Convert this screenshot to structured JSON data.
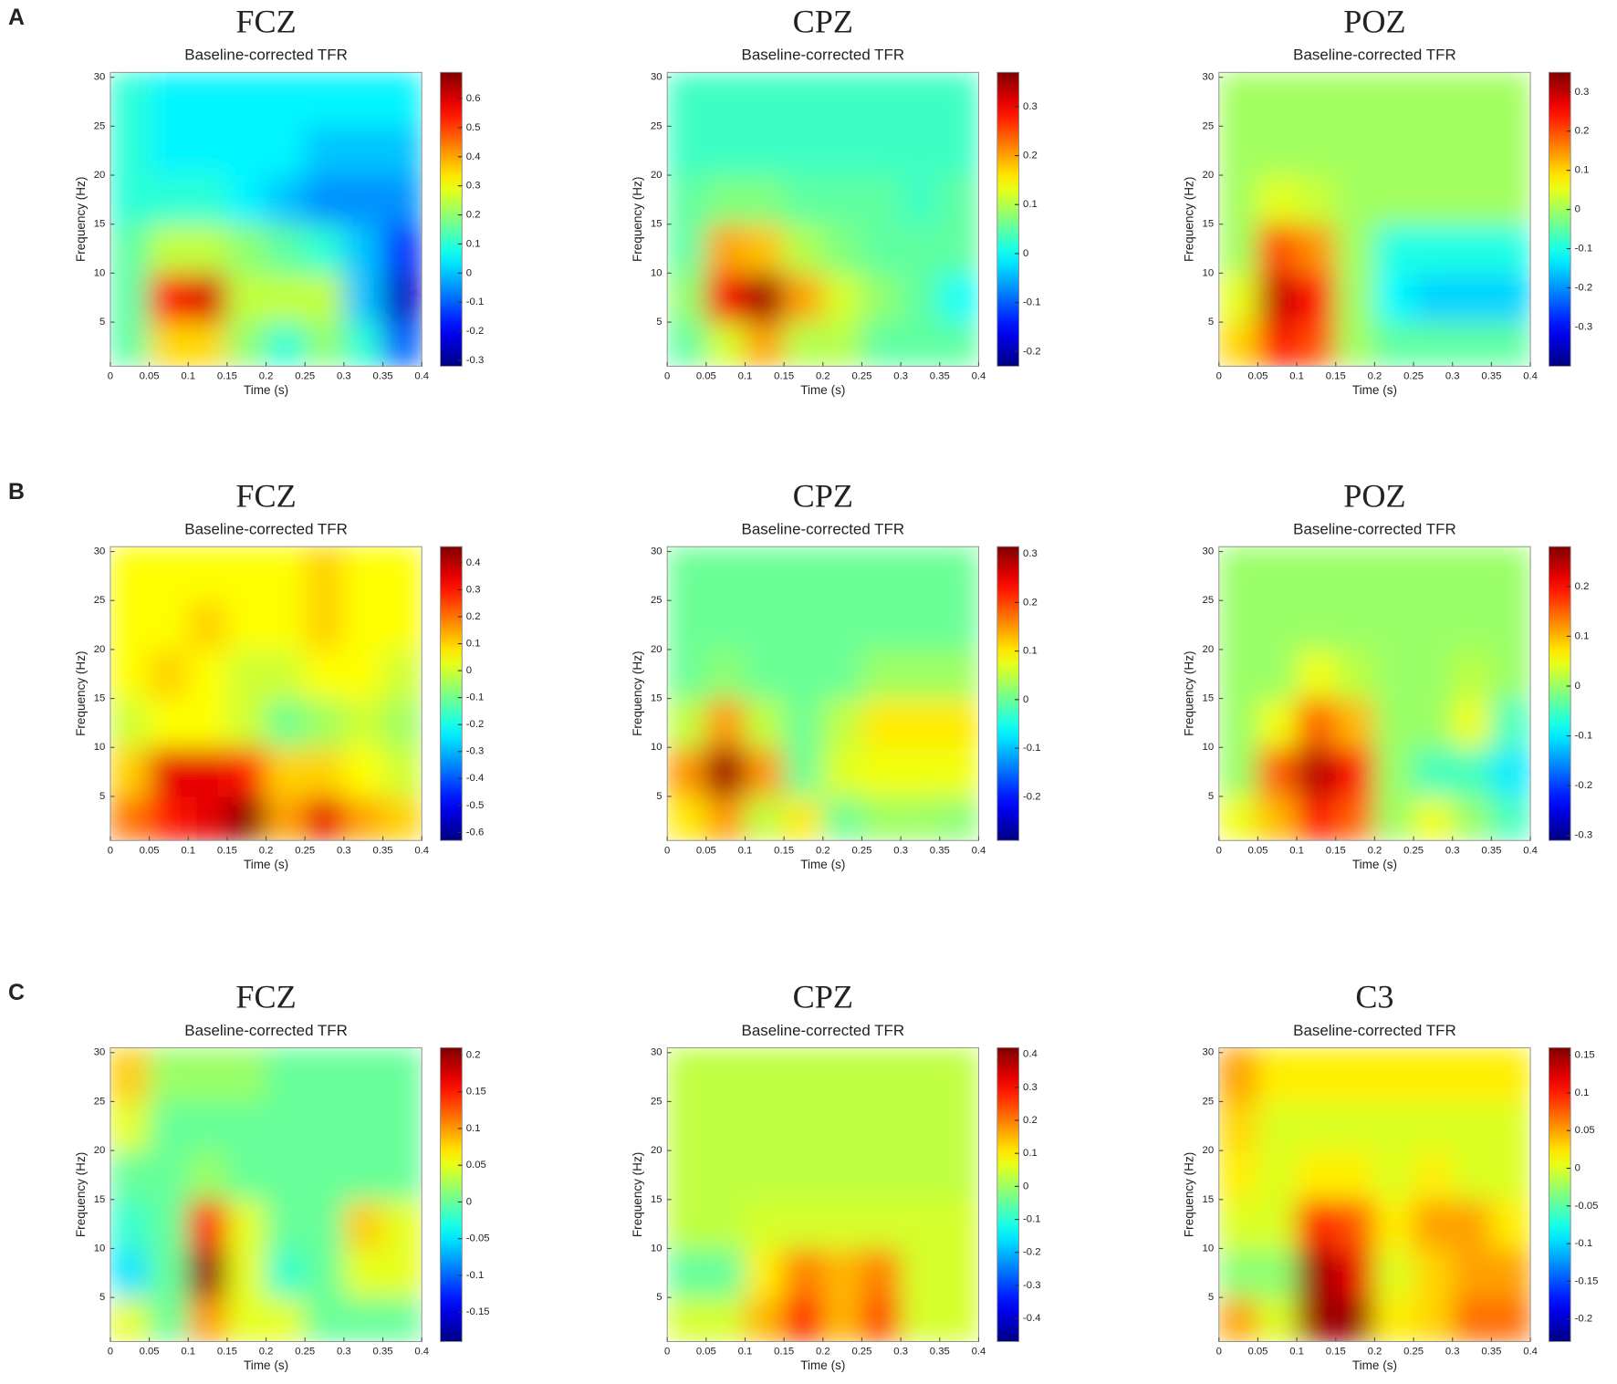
{
  "panel_labels": [
    "A",
    "B",
    "C"
  ],
  "chart_data": [
    {
      "type": "heatmap",
      "title": "FCZ",
      "subtitle": "Baseline-corrected TFR",
      "x_label": "Time (s)",
      "y_label": "Frequency (Hz)",
      "colormap": "jet",
      "x": [
        0.025,
        0.075,
        0.125,
        0.175,
        0.225,
        0.275,
        0.325,
        0.375
      ],
      "y": [
        2.5,
        7.5,
        12.5,
        17.5,
        22.5,
        27.5
      ],
      "z": [
        [
          0.15,
          0.35,
          0.35,
          0.2,
          0.1,
          0.2,
          0.1,
          -0.1
        ],
        [
          0.15,
          0.55,
          0.6,
          0.25,
          0.25,
          0.25,
          0.0,
          -0.25
        ],
        [
          0.15,
          0.25,
          0.25,
          0.2,
          0.15,
          0.1,
          0.0,
          -0.15
        ],
        [
          0.1,
          0.1,
          0.1,
          0.05,
          0.0,
          -0.05,
          -0.05,
          -0.05
        ],
        [
          0.1,
          0.05,
          0.05,
          0.05,
          0.05,
          0.0,
          0.0,
          0.0
        ],
        [
          0.1,
          0.05,
          0.05,
          0.05,
          0.05,
          0.05,
          0.05,
          0.05
        ]
      ],
      "xlim": [
        0,
        0.4
      ],
      "ylim": [
        0.5,
        30.5
      ],
      "xticks": [
        0,
        0.05,
        0.1,
        0.15,
        0.2,
        0.25,
        0.3,
        0.35,
        0.4
      ],
      "yticks": [
        5,
        10,
        15,
        20,
        25,
        30
      ],
      "clim": [
        -0.32,
        0.69
      ],
      "cticks": [
        0.6,
        0.5,
        0.4,
        0.3,
        0.2,
        0.1,
        0,
        -0.1,
        -0.2,
        -0.3
      ]
    },
    {
      "type": "heatmap",
      "title": "CPZ",
      "subtitle": "Baseline-corrected TFR",
      "x_label": "Time (s)",
      "y_label": "Frequency (Hz)",
      "colormap": "jet",
      "x": [
        0.025,
        0.075,
        0.125,
        0.175,
        0.225,
        0.275,
        0.325,
        0.375
      ],
      "y": [
        2.5,
        7.5,
        12.5,
        17.5,
        22.5,
        27.5
      ],
      "z": [
        [
          0.05,
          0.12,
          0.2,
          0.1,
          0.1,
          0.05,
          0.05,
          0.05
        ],
        [
          0.08,
          0.3,
          0.35,
          0.2,
          0.12,
          0.08,
          0.05,
          0.0
        ],
        [
          0.05,
          0.2,
          0.18,
          0.1,
          0.07,
          0.05,
          0.05,
          0.05
        ],
        [
          0.05,
          0.07,
          0.07,
          0.05,
          0.05,
          0.05,
          0.03,
          0.05
        ],
        [
          0.03,
          0.03,
          0.03,
          0.03,
          0.03,
          0.03,
          0.03,
          0.03
        ],
        [
          0.03,
          0.03,
          0.03,
          0.03,
          0.03,
          0.03,
          0.03,
          0.03
        ]
      ],
      "xlim": [
        0,
        0.4
      ],
      "ylim": [
        0.5,
        30.5
      ],
      "xticks": [
        0,
        0.05,
        0.1,
        0.15,
        0.2,
        0.25,
        0.3,
        0.35,
        0.4
      ],
      "yticks": [
        5,
        10,
        15,
        20,
        25,
        30
      ],
      "clim": [
        -0.23,
        0.37
      ],
      "cticks": [
        0.3,
        0.2,
        0.1,
        0,
        -0.1,
        -0.2
      ]
    },
    {
      "type": "heatmap",
      "title": "POZ",
      "subtitle": "Baseline-corrected TFR",
      "x_label": "Time (s)",
      "y_label": "Frequency (Hz)",
      "colormap": "jet",
      "x": [
        0.025,
        0.075,
        0.125,
        0.175,
        0.225,
        0.275,
        0.325,
        0.375
      ],
      "y": [
        2.5,
        7.5,
        12.5,
        17.5,
        22.5,
        27.5
      ],
      "z": [
        [
          0.1,
          0.25,
          0.2,
          0.0,
          -0.05,
          -0.05,
          -0.05,
          -0.05
        ],
        [
          0.05,
          0.3,
          0.25,
          0.0,
          -0.12,
          -0.15,
          -0.15,
          -0.15
        ],
        [
          0.0,
          0.2,
          0.15,
          0.0,
          -0.1,
          -0.1,
          -0.1,
          -0.1
        ],
        [
          0.0,
          0.05,
          0.03,
          0.0,
          0.0,
          0.0,
          0.0,
          0.0
        ],
        [
          0.0,
          0.0,
          0.0,
          0.0,
          0.0,
          0.0,
          0.0,
          0.0
        ],
        [
          0.0,
          0.0,
          0.0,
          0.0,
          0.0,
          0.0,
          0.0,
          0.0
        ]
      ],
      "xlim": [
        0,
        0.4
      ],
      "ylim": [
        0.5,
        30.5
      ],
      "xticks": [
        0,
        0.05,
        0.1,
        0.15,
        0.2,
        0.25,
        0.3,
        0.35,
        0.4
      ],
      "yticks": [
        5,
        10,
        15,
        20,
        25,
        30
      ],
      "clim": [
        -0.4,
        0.35
      ],
      "cticks": [
        0.3,
        0.2,
        0.1,
        0,
        -0.1,
        -0.2,
        -0.3
      ]
    },
    {
      "type": "heatmap",
      "title": "FCZ",
      "subtitle": "Baseline-corrected TFR",
      "x_label": "Time (s)",
      "y_label": "Frequency (Hz)",
      "colormap": "jet",
      "x": [
        0.025,
        0.075,
        0.125,
        0.175,
        0.225,
        0.275,
        0.325,
        0.375
      ],
      "y": [
        2.5,
        7.5,
        12.5,
        17.5,
        22.5,
        27.5
      ],
      "z": [
        [
          0.2,
          0.3,
          0.35,
          0.45,
          0.15,
          0.35,
          0.15,
          0.1
        ],
        [
          0.1,
          0.35,
          0.35,
          0.3,
          0.1,
          0.1,
          0.05,
          0.0
        ],
        [
          0.0,
          0.05,
          0.05,
          0.0,
          -0.1,
          -0.05,
          0.0,
          -0.05
        ],
        [
          0.05,
          0.1,
          0.05,
          0.0,
          0.0,
          0.05,
          0.05,
          0.0
        ],
        [
          0.05,
          0.05,
          0.1,
          0.05,
          0.05,
          0.1,
          0.05,
          0.05
        ],
        [
          0.05,
          0.05,
          0.05,
          0.05,
          0.05,
          0.1,
          0.05,
          0.05
        ]
      ],
      "xlim": [
        0,
        0.4
      ],
      "ylim": [
        0.5,
        30.5
      ],
      "xticks": [
        0,
        0.05,
        0.1,
        0.15,
        0.2,
        0.25,
        0.3,
        0.35,
        0.4
      ],
      "yticks": [
        5,
        10,
        15,
        20,
        25,
        30
      ],
      "clim": [
        -0.63,
        0.46
      ],
      "cticks": [
        0.4,
        0.3,
        0.2,
        0.1,
        0,
        -0.1,
        -0.2,
        -0.3,
        -0.4,
        -0.5,
        -0.6
      ]
    },
    {
      "type": "heatmap",
      "title": "CPZ",
      "subtitle": "Baseline-corrected TFR",
      "x_label": "Time (s)",
      "y_label": "Frequency (Hz)",
      "colormap": "jet",
      "x": [
        0.025,
        0.075,
        0.125,
        0.175,
        0.225,
        0.275,
        0.325,
        0.375
      ],
      "y": [
        2.5,
        7.5,
        12.5,
        17.5,
        22.5,
        27.5
      ],
      "z": [
        [
          0.1,
          0.15,
          0.05,
          0.1,
          0.0,
          0.03,
          0.03,
          0.02
        ],
        [
          0.15,
          0.3,
          0.15,
          0.0,
          0.07,
          0.08,
          0.08,
          0.08
        ],
        [
          0.05,
          0.15,
          0.05,
          0.0,
          0.05,
          0.1,
          0.1,
          0.1
        ],
        [
          0.0,
          0.02,
          0.0,
          0.0,
          0.0,
          0.03,
          0.03,
          0.03
        ],
        [
          0.0,
          0.0,
          0.0,
          0.0,
          0.0,
          0.0,
          0.0,
          0.0
        ],
        [
          0.0,
          0.0,
          0.0,
          0.0,
          0.0,
          0.0,
          0.0,
          0.0
        ]
      ],
      "xlim": [
        0,
        0.4
      ],
      "ylim": [
        0.5,
        30.5
      ],
      "xticks": [
        0,
        0.05,
        0.1,
        0.15,
        0.2,
        0.25,
        0.3,
        0.35,
        0.4
      ],
      "yticks": [
        5,
        10,
        15,
        20,
        25,
        30
      ],
      "clim": [
        -0.29,
        0.315
      ],
      "cticks": [
        0.3,
        0.2,
        0.1,
        0,
        -0.1,
        -0.2
      ]
    },
    {
      "type": "heatmap",
      "title": "POZ",
      "subtitle": "Baseline-corrected TFR",
      "x_label": "Time (s)",
      "y_label": "Frequency (Hz)",
      "colormap": "jet",
      "x": [
        0.025,
        0.075,
        0.125,
        0.175,
        0.225,
        0.275,
        0.325,
        0.375
      ],
      "y": [
        2.5,
        7.5,
        12.5,
        17.5,
        22.5,
        27.5
      ],
      "z": [
        [
          0.05,
          0.1,
          0.2,
          0.15,
          0.0,
          0.05,
          0.0,
          -0.05
        ],
        [
          0.0,
          0.15,
          0.25,
          0.2,
          0.0,
          -0.05,
          -0.05,
          -0.1
        ],
        [
          0.0,
          0.05,
          0.15,
          0.1,
          0.0,
          0.0,
          0.05,
          -0.05
        ],
        [
          0.0,
          0.0,
          0.05,
          0.02,
          0.0,
          0.0,
          0.02,
          0.0
        ],
        [
          0.0,
          0.0,
          0.0,
          0.0,
          0.0,
          0.0,
          0.0,
          0.0
        ],
        [
          0.0,
          0.0,
          0.0,
          0.0,
          0.0,
          0.0,
          0.0,
          0.0
        ]
      ],
      "xlim": [
        0,
        0.4
      ],
      "ylim": [
        0.5,
        30.5
      ],
      "xticks": [
        0,
        0.05,
        0.1,
        0.15,
        0.2,
        0.25,
        0.3,
        0.35,
        0.4
      ],
      "yticks": [
        5,
        10,
        15,
        20,
        25,
        30
      ],
      "clim": [
        -0.31,
        0.28
      ],
      "cticks": [
        0.2,
        0.1,
        0,
        -0.1,
        -0.2,
        -0.3
      ]
    },
    {
      "type": "heatmap",
      "title": "FCZ",
      "subtitle": "Baseline-corrected TFR",
      "x_label": "Time (s)",
      "y_label": "Frequency (Hz)",
      "colormap": "jet",
      "x": [
        0.025,
        0.075,
        0.125,
        0.175,
        0.225,
        0.275,
        0.325,
        0.375
      ],
      "y": [
        2.5,
        7.5,
        12.5,
        17.5,
        22.5,
        27.5
      ],
      "z": [
        [
          0.05,
          0.0,
          0.1,
          0.05,
          0.05,
          0.0,
          0.0,
          0.0
        ],
        [
          -0.05,
          0.0,
          0.2,
          0.05,
          -0.02,
          0.0,
          0.05,
          0.05
        ],
        [
          -0.02,
          0.0,
          0.15,
          0.05,
          0.0,
          0.0,
          0.08,
          0.05
        ],
        [
          0.0,
          0.0,
          0.02,
          0.0,
          0.0,
          0.0,
          0.0,
          0.0
        ],
        [
          0.05,
          0.0,
          0.0,
          0.0,
          0.0,
          0.0,
          0.0,
          0.0
        ],
        [
          0.08,
          0.02,
          0.02,
          0.02,
          0.0,
          0.0,
          0.0,
          0.0
        ]
      ],
      "xlim": [
        0,
        0.4
      ],
      "ylim": [
        0.5,
        30.5
      ],
      "xticks": [
        0,
        0.05,
        0.1,
        0.15,
        0.2,
        0.25,
        0.3,
        0.35,
        0.4
      ],
      "yticks": [
        5,
        10,
        15,
        20,
        25,
        30
      ],
      "clim": [
        -0.19,
        0.21
      ],
      "cticks": [
        0.2,
        0.15,
        0.1,
        0.05,
        0,
        -0.05,
        -0.1,
        -0.15
      ]
    },
    {
      "type": "heatmap",
      "title": "CPZ",
      "subtitle": "Baseline-corrected TFR",
      "x_label": "Time (s)",
      "y_label": "Frequency (Hz)",
      "colormap": "jet",
      "x": [
        0.025,
        0.075,
        0.125,
        0.175,
        0.225,
        0.275,
        0.325,
        0.375
      ],
      "y": [
        2.5,
        7.5,
        12.5,
        17.5,
        22.5,
        27.5
      ],
      "z": [
        [
          0.05,
          0.05,
          0.15,
          0.3,
          0.15,
          0.25,
          0.05,
          0.05
        ],
        [
          -0.05,
          -0.05,
          0.1,
          0.2,
          0.15,
          0.2,
          0.05,
          0.05
        ],
        [
          0.03,
          0.03,
          0.05,
          0.05,
          0.05,
          0.05,
          0.05,
          0.05
        ],
        [
          0.03,
          0.03,
          0.03,
          0.03,
          0.03,
          0.03,
          0.03,
          0.03
        ],
        [
          0.03,
          0.03,
          0.03,
          0.03,
          0.03,
          0.03,
          0.03,
          0.03
        ],
        [
          0.03,
          0.03,
          0.03,
          0.03,
          0.03,
          0.03,
          0.03,
          0.03
        ]
      ],
      "xlim": [
        0,
        0.4
      ],
      "ylim": [
        0.5,
        30.5
      ],
      "xticks": [
        0,
        0.05,
        0.1,
        0.15,
        0.2,
        0.25,
        0.3,
        0.35,
        0.4
      ],
      "yticks": [
        5,
        10,
        15,
        20,
        25,
        30
      ],
      "clim": [
        -0.47,
        0.42
      ],
      "cticks": [
        0.4,
        0.3,
        0.2,
        0.1,
        0,
        -0.1,
        -0.2,
        -0.3,
        -0.4
      ]
    },
    {
      "type": "heatmap",
      "title": "C3",
      "subtitle": "Baseline-corrected TFR",
      "x_label": "Time (s)",
      "y_label": "Frequency (Hz)",
      "colormap": "jet",
      "x": [
        0.025,
        0.075,
        0.125,
        0.175,
        0.225,
        0.275,
        0.325,
        0.375
      ],
      "y": [
        2.5,
        7.5,
        12.5,
        17.5,
        22.5,
        27.5
      ],
      "z": [
        [
          0.05,
          0.0,
          0.15,
          0.15,
          0.02,
          0.03,
          0.07,
          0.07
        ],
        [
          -0.03,
          -0.03,
          0.15,
          0.12,
          0.0,
          0.03,
          0.05,
          0.05
        ],
        [
          0.0,
          0.0,
          0.1,
          0.08,
          0.02,
          0.05,
          0.05,
          0.02
        ],
        [
          0.02,
          0.0,
          0.02,
          0.02,
          0.0,
          0.02,
          0.0,
          0.0
        ],
        [
          0.03,
          0.0,
          0.0,
          0.0,
          0.0,
          0.0,
          0.0,
          0.0
        ],
        [
          0.05,
          0.02,
          0.02,
          0.02,
          0.02,
          0.02,
          0.02,
          0.02
        ]
      ],
      "xlim": [
        0,
        0.4
      ],
      "ylim": [
        0.5,
        30.5
      ],
      "xticks": [
        0,
        0.05,
        0.1,
        0.15,
        0.2,
        0.25,
        0.3,
        0.35,
        0.4
      ],
      "yticks": [
        5,
        10,
        15,
        20,
        25,
        30
      ],
      "clim": [
        -0.23,
        0.16
      ],
      "cticks": [
        0.15,
        0.1,
        0.05,
        0,
        -0.05,
        -0.1,
        -0.15,
        -0.2
      ]
    }
  ]
}
